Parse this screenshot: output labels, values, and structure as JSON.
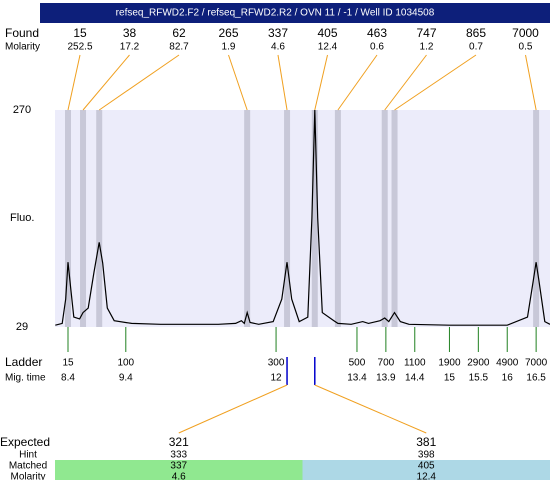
{
  "title": "refseq_RFWD2.F2 / refseq_RFWD2.R2 / OVN 11 / -1 / Well ID 1034508",
  "found": {
    "label": "Found",
    "molarity_label": "Molarity",
    "peaks": [
      {
        "size": 15,
        "molarity": 252.5,
        "time": 8.4
      },
      {
        "size": 38,
        "molarity": 17.2,
        "time": 8.66
      },
      {
        "size": 62,
        "molarity": 82.7,
        "time": 8.94
      },
      {
        "size": 265,
        "molarity": 1.9,
        "time": 11.5
      },
      {
        "size": 337,
        "molarity": 4.6,
        "time": 12.19
      },
      {
        "size": 405,
        "molarity": 12.4,
        "time": 12.67
      },
      {
        "size": 463,
        "molarity": 0.6,
        "time": 13.07
      },
      {
        "size": 747,
        "molarity": 1.2,
        "time": 13.88
      },
      {
        "size": 865,
        "molarity": 0.7,
        "time": 14.05
      },
      {
        "size": 7000,
        "molarity": 0.5,
        "time": 16.5
      }
    ]
  },
  "chart_data": {
    "type": "line",
    "ylabel": "Fluo.",
    "color": "#000000",
    "band_color": "#c8c8d8",
    "background": "#ececfa",
    "xlim": [
      8.175,
      16.74
    ],
    "ylim": [
      29,
      270
    ],
    "yticks": [
      29,
      270
    ],
    "x": [
      8.18,
      8.3,
      8.36,
      8.4,
      8.45,
      8.5,
      8.6,
      8.66,
      8.75,
      8.85,
      8.94,
      9.0,
      9.08,
      9.2,
      9.5,
      10,
      11,
      11.3,
      11.4,
      11.45,
      11.5,
      11.55,
      11.7,
      11.95,
      12.1,
      12.19,
      12.27,
      12.4,
      12.55,
      12.62,
      12.67,
      12.72,
      12.8,
      13.0,
      13.07,
      13.3,
      13.5,
      13.6,
      13.8,
      13.88,
      13.95,
      14.05,
      14.15,
      14.3,
      15,
      16,
      16.35,
      16.45,
      16.5,
      16.55,
      16.65,
      16.74
    ],
    "values": [
      31,
      33,
      60,
      101,
      70,
      40,
      38,
      45,
      50,
      90,
      123,
      100,
      50,
      36,
      33,
      32,
      32,
      33,
      36,
      33,
      45,
      34,
      32,
      35,
      60,
      101,
      60,
      35,
      40,
      150,
      270,
      150,
      45,
      36,
      33,
      32,
      35,
      33,
      36,
      39,
      35,
      45,
      35,
      32,
      31,
      31,
      40,
      80,
      101,
      80,
      35,
      32
    ]
  },
  "ladder": {
    "label": "Ladder",
    "time_label": "Mig. time",
    "markers": [
      {
        "size": 15,
        "time": 8.4
      },
      {
        "size": 100,
        "time": 9.4
      },
      {
        "size": 300,
        "time": 12
      },
      {
        "size": 500,
        "time": 13.4
      },
      {
        "size": 700,
        "time": 13.9
      },
      {
        "size": 1100,
        "time": 14.4
      },
      {
        "size": 1900,
        "time": 15
      },
      {
        "size": 2900,
        "time": 15.5
      },
      {
        "size": 4900,
        "time": 16
      },
      {
        "size": 7000,
        "time": 16.5
      }
    ]
  },
  "expected": {
    "labels": [
      "Expected",
      "Hint",
      "Matched",
      "Molarity"
    ],
    "columns": [
      {
        "expected": 321,
        "hint": 333,
        "matched": 337,
        "molarity": 4.6,
        "color": "#90e890"
      },
      {
        "expected": 381,
        "hint": 398,
        "matched": 405,
        "molarity": 12.4,
        "color": "#add8e6"
      }
    ]
  }
}
